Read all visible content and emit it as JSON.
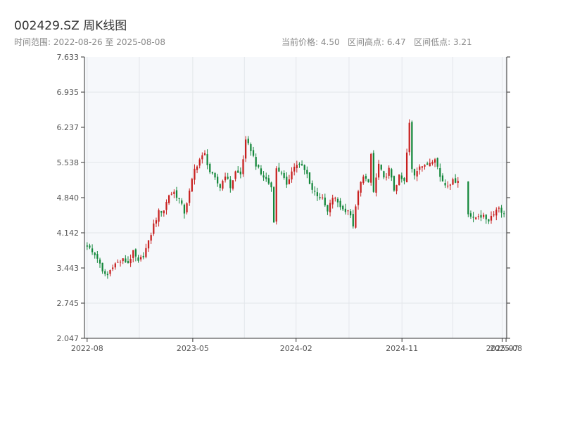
{
  "title": "002429.SZ 周K线图",
  "subtitle": "时间范围: 2022-08-26 至 2025-08-08",
  "stats": {
    "current_label": "当前价格:",
    "current_value": "4.50",
    "high_label": "区间高点:",
    "high_value": "6.47",
    "low_label": "区间低点:",
    "low_value": "3.21"
  },
  "colors": {
    "up": "#c8201f",
    "down": "#13873a",
    "grid": "#e3e6ea",
    "plot_bg": "#f6f8fb",
    "axis": "#333333"
  },
  "chart_data": {
    "type": "candlestick",
    "ylim": [
      2.047,
      7.633
    ],
    "y_ticks": [
      "7.633",
      "6.935",
      "6.237",
      "5.538",
      "4.840",
      "4.142",
      "3.443",
      "2.745",
      "2.047"
    ],
    "x_ticks": [
      "2022-08",
      "2023-05",
      "2024-02",
      "2024-11",
      "2025-07",
      "2025-08"
    ],
    "x_tick_positions": [
      0,
      41.3,
      81.7,
      123.1,
      162.3,
      163.8
    ],
    "week_count": 164,
    "gaps": [
      [
        145.5,
        148.5
      ]
    ],
    "anchors": [
      [
        0,
        3.9
      ],
      [
        2,
        3.75
      ],
      [
        4,
        3.65
      ],
      [
        6,
        3.35
      ],
      [
        8,
        3.3
      ],
      [
        10,
        3.5
      ],
      [
        12,
        3.55
      ],
      [
        14,
        3.6
      ],
      [
        16,
        3.55
      ],
      [
        18,
        3.75
      ],
      [
        20,
        3.55
      ],
      [
        22,
        3.7
      ],
      [
        24,
        3.95
      ],
      [
        26,
        4.3
      ],
      [
        28,
        4.55
      ],
      [
        30,
        4.6
      ],
      [
        32,
        4.9
      ],
      [
        34,
        4.95
      ],
      [
        36,
        4.8
      ],
      [
        38,
        4.55
      ],
      [
        40,
        4.95
      ],
      [
        42,
        5.4
      ],
      [
        44,
        5.6
      ],
      [
        46,
        5.7
      ],
      [
        48,
        5.35
      ],
      [
        50,
        5.2
      ],
      [
        52,
        5.05
      ],
      [
        54,
        5.3
      ],
      [
        56,
        5.05
      ],
      [
        58,
        5.35
      ],
      [
        60,
        5.3
      ],
      [
        62,
        5.95
      ],
      [
        64,
        5.8
      ],
      [
        66,
        5.5
      ],
      [
        68,
        5.3
      ],
      [
        70,
        5.2
      ],
      [
        72,
        5.05
      ],
      [
        73,
        4.4
      ],
      [
        74,
        5.4
      ],
      [
        76,
        5.35
      ],
      [
        78,
        5.05
      ],
      [
        80,
        5.4
      ],
      [
        82,
        5.5
      ],
      [
        84,
        5.45
      ],
      [
        86,
        5.3
      ],
      [
        88,
        5.0
      ],
      [
        90,
        4.9
      ],
      [
        92,
        4.8
      ],
      [
        94,
        4.55
      ],
      [
        96,
        4.85
      ],
      [
        98,
        4.75
      ],
      [
        100,
        4.6
      ],
      [
        102,
        4.6
      ],
      [
        104,
        4.3
      ],
      [
        106,
        4.95
      ],
      [
        108,
        5.3
      ],
      [
        110,
        5.1
      ],
      [
        111,
        5.7
      ],
      [
        112,
        4.95
      ],
      [
        114,
        5.5
      ],
      [
        116,
        5.2
      ],
      [
        118,
        5.4
      ],
      [
        120,
        5.0
      ],
      [
        122,
        5.25
      ],
      [
        124,
        5.15
      ],
      [
        126,
        6.3
      ],
      [
        127,
        5.4
      ],
      [
        128,
        5.3
      ],
      [
        130,
        5.5
      ],
      [
        132,
        5.45
      ],
      [
        134,
        5.55
      ],
      [
        136,
        5.65
      ],
      [
        138,
        5.25
      ],
      [
        140,
        5.1
      ],
      [
        145,
        5.2
      ],
      [
        149,
        4.55
      ],
      [
        151,
        4.4
      ],
      [
        153,
        4.5
      ],
      [
        155,
        4.45
      ],
      [
        157,
        4.4
      ],
      [
        159,
        4.55
      ],
      [
        161,
        4.65
      ],
      [
        163,
        4.5
      ]
    ]
  }
}
